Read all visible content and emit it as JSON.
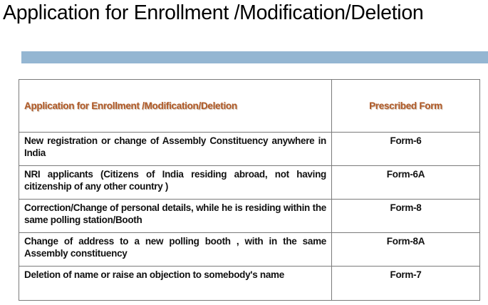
{
  "title": "Application for Enrollment /Modification/Deletion",
  "colors": {
    "bar": "#94b6d2",
    "header_text": "#b05a28"
  },
  "table": {
    "headers": [
      "Application for Enrollment /Modification/Deletion",
      "Prescribed Form"
    ],
    "rows": [
      {
        "description": "New registration or change of Assembly Constituency anywhere in India",
        "form": "Form-6"
      },
      {
        "description": "NRI applicants (Citizens of India residing abroad, not having citizenship of any other country )",
        "form": "Form-6A"
      },
      {
        "description": "Correction/Change of personal details, while he is residing within the same polling station/Booth",
        "form": "Form-8"
      },
      {
        "description": "Change of address to a new polling booth , with in the same Assembly constituency",
        "form": "Form-8A"
      },
      {
        "description": "Deletion of name or raise an objection to somebody's name",
        "form": "Form-7"
      }
    ]
  }
}
